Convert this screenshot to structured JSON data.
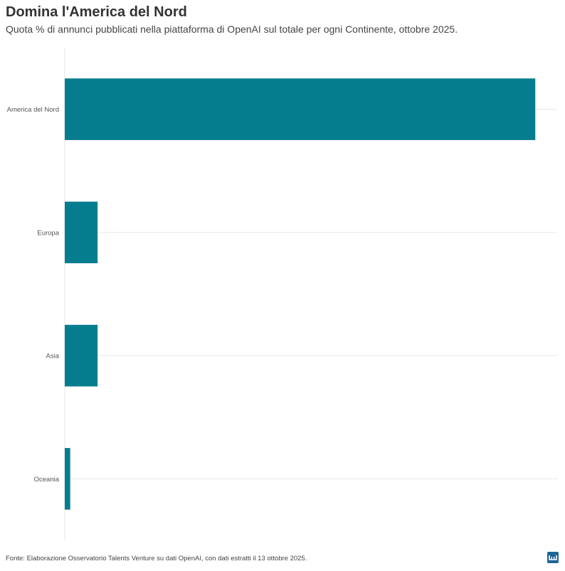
{
  "header": {
    "title": "Domina l'America del Nord",
    "subtitle": "Quota % di annunci pubblicati nella piattaforma di OpenAI sul totale per ogni Continente, ottobre 2025."
  },
  "footer": {
    "source": "Fonte: Elaborazione Osservatorio Talents Venture su dati OpenAI, con dati estratti il 13 ottobre 2025."
  },
  "colors": {
    "bar": "#067d8e",
    "grid": "#e6e6e6",
    "logo": "#1f6596"
  },
  "chart_data": {
    "type": "bar",
    "orientation": "horizontal",
    "title": "Domina l'America del Nord",
    "subtitle": "Quota % di annunci pubblicati nella piattaforma di OpenAI sul totale per ogni Continente, ottobre 2025.",
    "categories": [
      "America del Nord",
      "Europa",
      "Asia",
      "Oceania"
    ],
    "values": [
      86,
      6,
      6,
      1
    ],
    "xlabel": "",
    "ylabel": "",
    "xlim": [
      0,
      90
    ],
    "grid": true,
    "legend": "none"
  }
}
